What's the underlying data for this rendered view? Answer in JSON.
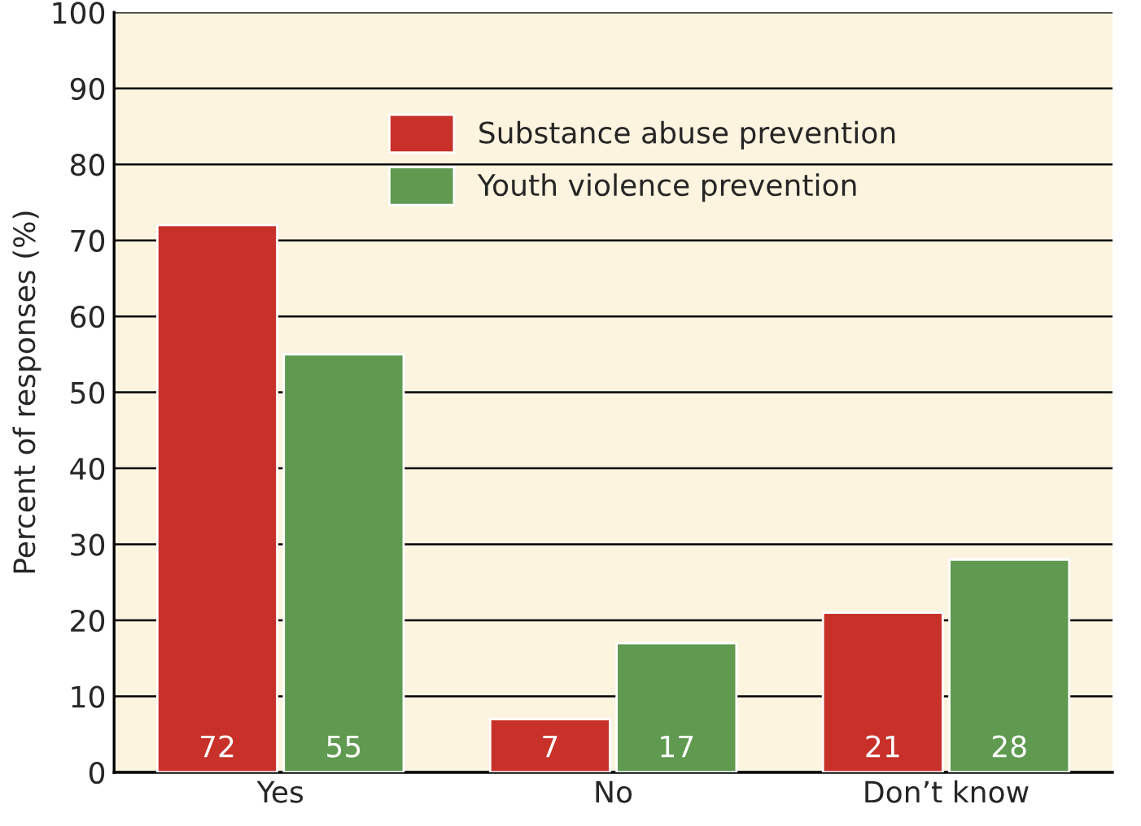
{
  "chart_data": {
    "type": "bar",
    "ylabel": "Percent of responses (%)",
    "categories": [
      "Yes",
      "No",
      "Don’t know"
    ],
    "series": [
      {
        "name": "Substance abuse prevention",
        "color": "#c8312a",
        "values": [
          72,
          7,
          21
        ]
      },
      {
        "name": "Youth violence prevention",
        "color": "#5f9a50",
        "values": [
          55,
          17,
          28
        ]
      }
    ],
    "ylim": [
      0,
      100
    ],
    "yticks": [
      0,
      10,
      20,
      30,
      40,
      50,
      60,
      70,
      80,
      90,
      100
    ],
    "grid": "y",
    "legend": "top",
    "data_labels": true
  }
}
